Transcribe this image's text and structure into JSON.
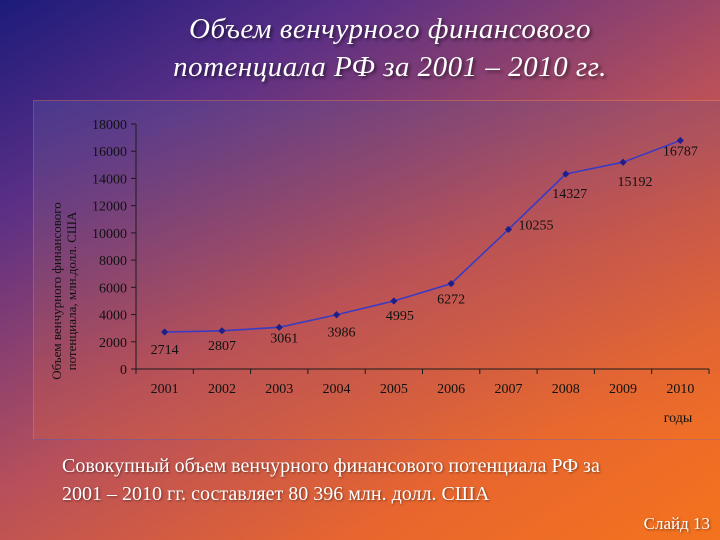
{
  "slide": {
    "title_line1": "Объем венчурного финансового",
    "title_line2": "потенциала РФ за 2001 – 2010 гг.",
    "caption_line1": "Совокупный объем венчурного финансового потенциала РФ за",
    "caption_line2": "2001 – 2010 гг. составляет 80 396 млн. долл. США",
    "slide_number": "Слайд 13"
  },
  "colors": {
    "line": "#3b3bc2",
    "marker": "#1f1f8a",
    "axis": "#1a1a1a",
    "text": "#111111"
  },
  "chart_data": {
    "type": "line",
    "title": "",
    "xlabel": "годы",
    "ylabel": "Объем венчурного финансового потенциала, млн.долл. США",
    "ylabel_line1": "Объем венчурного финансового",
    "ylabel_line2": "потенциала, млн.долл. США",
    "categories": [
      "2001",
      "2002",
      "2003",
      "2004",
      "2005",
      "2006",
      "2007",
      "2008",
      "2009",
      "2010"
    ],
    "series": [
      {
        "values": [
          2714,
          2807,
          3061,
          3986,
          4995,
          6272,
          10255,
          14327,
          15192,
          16787
        ]
      }
    ],
    "data_labels": [
      "2714",
      "2807",
      "3061",
      "3986",
      "4995",
      "6272",
      "10255",
      "14327",
      "15192",
      "16787"
    ],
    "ylim": [
      0,
      18000
    ],
    "yticks": [
      0,
      2000,
      4000,
      6000,
      8000,
      10000,
      12000,
      14000,
      16000,
      18000
    ],
    "grid": false,
    "legend": "none"
  }
}
